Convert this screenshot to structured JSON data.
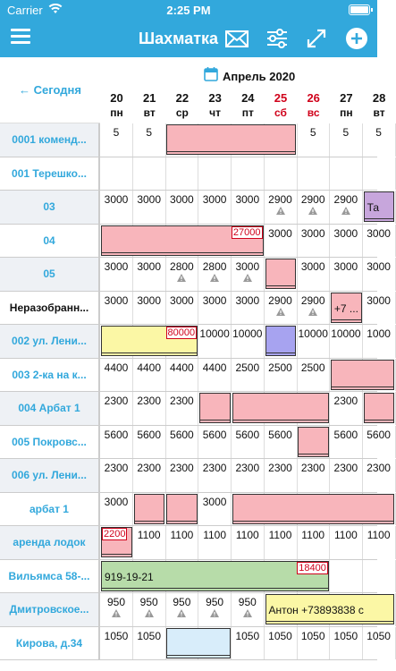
{
  "status": {
    "carrier": "Carrier",
    "time": "2:25 PM"
  },
  "nav": {
    "title": "Шахматка",
    "icons": [
      "menu-icon",
      "envelope-icon",
      "sliders-icon",
      "expand-icon",
      "plus-icon"
    ]
  },
  "header": {
    "month": "Апрель 2020",
    "today": "← Сегодня"
  },
  "days": [
    {
      "num": "20",
      "wd": "пн",
      "weekend": false
    },
    {
      "num": "21",
      "wd": "вт",
      "weekend": false
    },
    {
      "num": "22",
      "wd": "ср",
      "weekend": false
    },
    {
      "num": "23",
      "wd": "чт",
      "weekend": false
    },
    {
      "num": "24",
      "wd": "пт",
      "weekend": false
    },
    {
      "num": "25",
      "wd": "сб",
      "weekend": true
    },
    {
      "num": "26",
      "wd": "вс",
      "weekend": true
    },
    {
      "num": "27",
      "wd": "пн",
      "weekend": false
    },
    {
      "num": "28",
      "wd": "вт",
      "weekend": false
    }
  ],
  "rows": [
    {
      "label": "0001 коменд...",
      "style": "blue",
      "cells": [
        "5",
        "5",
        "",
        "",
        "",
        "",
        "5",
        "5",
        "5"
      ],
      "warn": [],
      "blocks": [
        {
          "start": 2,
          "span": 4,
          "color": "pink"
        }
      ]
    },
    {
      "label": "001 Терешко...",
      "style": "blue-white",
      "cells": [
        "",
        "",
        "",
        "",
        "",
        "",
        "",
        "",
        ""
      ],
      "warn": [],
      "blocks": []
    },
    {
      "label": "03",
      "style": "blue",
      "cells": [
        "3000",
        "3000",
        "3000",
        "3000",
        "3000",
        "2900",
        "2900",
        "2900",
        ""
      ],
      "warn": [
        5,
        6,
        7
      ],
      "blocks": [
        {
          "start": 8,
          "span": 1,
          "color": "lilac",
          "text": "Та"
        }
      ]
    },
    {
      "label": "04",
      "style": "blue-white",
      "cells": [
        "",
        "",
        "",
        "",
        "",
        "3000",
        "3000",
        "3000",
        "3000"
      ],
      "warn": [],
      "blocks": [
        {
          "start": 0,
          "span": 5,
          "color": "pink",
          "amount": "27000"
        }
      ]
    },
    {
      "label": "05",
      "style": "blue",
      "cells": [
        "3000",
        "3000",
        "2800",
        "2800",
        "3000",
        "",
        "3000",
        "3000",
        "3000"
      ],
      "warn": [
        2,
        3,
        4
      ],
      "blocks": [
        {
          "start": 5,
          "span": 1,
          "color": "pink"
        }
      ]
    },
    {
      "label": "Неразобранн...",
      "style": "dark",
      "cells": [
        "3000",
        "3000",
        "3000",
        "3000",
        "3000",
        "2900",
        "2900",
        "",
        "3000"
      ],
      "warn": [
        5,
        6
      ],
      "blocks": [
        {
          "start": 7,
          "span": 1,
          "color": "pink",
          "text": "+7 ..."
        }
      ]
    },
    {
      "label": "002 ул. Лени...",
      "style": "blue",
      "cells": [
        "",
        "",
        "",
        "10000",
        "10000",
        "",
        "10000",
        "10000",
        "1000"
      ],
      "warn": [],
      "blocks": [
        {
          "start": 0,
          "span": 3,
          "color": "yellow",
          "amount": "80000"
        },
        {
          "start": 5,
          "span": 1,
          "color": "purple"
        }
      ]
    },
    {
      "label": "003 2-ка на к...",
      "style": "blue-white",
      "cells": [
        "4400",
        "4400",
        "4400",
        "4400",
        "2500",
        "2500",
        "2500",
        "",
        ""
      ],
      "warn": [],
      "blocks": [
        {
          "start": 7,
          "span": 2,
          "color": "pink"
        }
      ]
    },
    {
      "label": "004 Арбат 1",
      "style": "blue",
      "cells": [
        "2300",
        "2300",
        "2300",
        "",
        "",
        "",
        "",
        "2300",
        ""
      ],
      "warn": [],
      "blocks": [
        {
          "start": 3,
          "span": 1,
          "color": "pink"
        },
        {
          "start": 4,
          "span": 3,
          "color": "pink"
        },
        {
          "start": 8,
          "span": 1,
          "color": "pink"
        }
      ]
    },
    {
      "label": "005 Покровс...",
      "style": "blue-white",
      "cells": [
        "5600",
        "5600",
        "5600",
        "5600",
        "5600",
        "5600",
        "",
        "5600",
        "5600"
      ],
      "warn": [],
      "blocks": [
        {
          "start": 6,
          "span": 1,
          "color": "pink"
        }
      ]
    },
    {
      "label": "006 ул. Лени...",
      "style": "blue",
      "cells": [
        "2300",
        "2300",
        "2300",
        "2300",
        "2300",
        "2300",
        "2300",
        "2300",
        "2300"
      ],
      "warn": [],
      "blocks": []
    },
    {
      "label": "арбат 1",
      "style": "blue-white",
      "cells": [
        "3000",
        "",
        "",
        "3000",
        "",
        "",
        "",
        "",
        ""
      ],
      "warn": [],
      "blocks": [
        {
          "start": 1,
          "span": 1,
          "color": "pink"
        },
        {
          "start": 2,
          "span": 1,
          "color": "pink"
        },
        {
          "start": 4,
          "span": 5,
          "color": "pink"
        }
      ]
    },
    {
      "label": "аренда лодок",
      "style": "blue",
      "cells": [
        "",
        "1100",
        "1100",
        "1100",
        "1100",
        "1100",
        "1100",
        "1100",
        "1100"
      ],
      "warn": [],
      "blocks": [
        {
          "start": 0,
          "span": 1,
          "color": "pink",
          "amount": "2200",
          "left": true
        }
      ]
    },
    {
      "label": "Вильямса 58-...",
      "style": "blue-white",
      "cells": [
        "",
        "",
        "",
        "",
        "",
        "",
        "",
        "",
        ""
      ],
      "warn": [],
      "blocks": [
        {
          "start": 0,
          "span": 7,
          "color": "green",
          "text": "919-19-21",
          "amount": "18400"
        }
      ]
    },
    {
      "label": "Дмитровское...",
      "style": "blue",
      "cells": [
        "950",
        "950",
        "950",
        "950",
        "950",
        "",
        "",
        "",
        ""
      ],
      "warn": [
        0,
        1,
        2,
        3,
        4
      ],
      "blocks": [
        {
          "start": 5,
          "span": 4,
          "color": "yellow",
          "text": "Антон +73893838 с"
        }
      ]
    },
    {
      "label": "Кирова, д.34",
      "style": "blue-white",
      "cells": [
        "1050",
        "1050",
        "",
        "",
        "1050",
        "1050",
        "1050",
        "1050",
        "1050"
      ],
      "warn": [],
      "blocks": [
        {
          "start": 2,
          "span": 2,
          "color": "lightblue"
        }
      ]
    }
  ]
}
